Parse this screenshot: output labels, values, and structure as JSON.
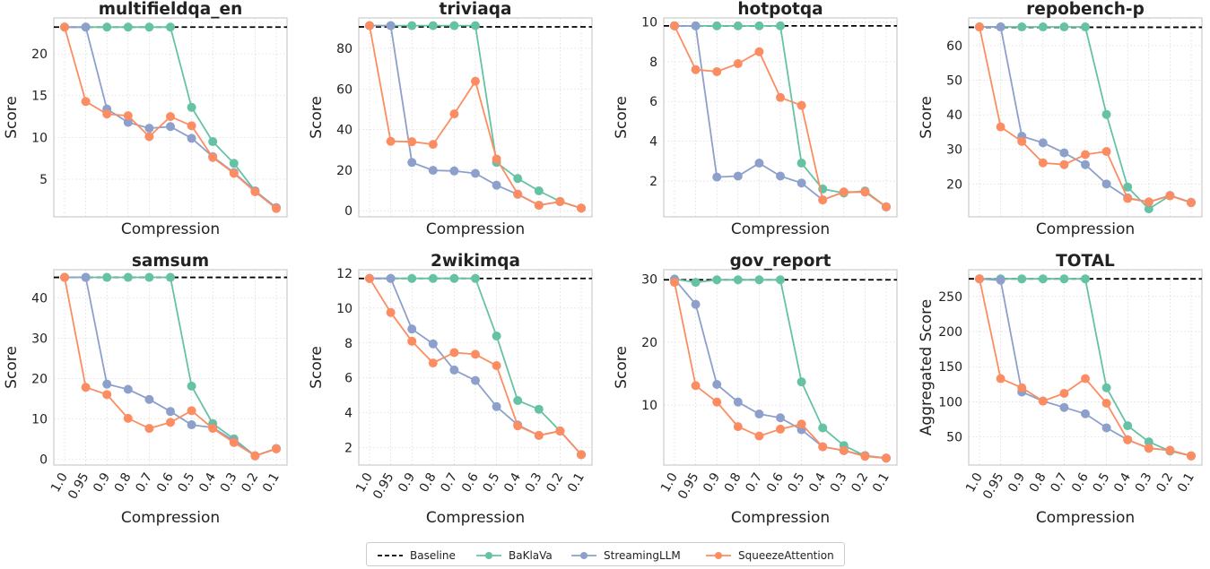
{
  "colors": {
    "baseline": "#000000",
    "baklava": "#66c2a5",
    "streamingllm": "#8da0cb",
    "squeezeattention": "#fc8d62",
    "frame": "#cccccc",
    "grid": "#e3e3e3"
  },
  "legend": {
    "baseline": "Baseline",
    "baklava": "BaKlaVa",
    "streamingllm": "StreamingLLM",
    "squeezeattention": "SqueezeAttention"
  },
  "chart_data": [
    {
      "type": "line",
      "title": "multifieldqa_en",
      "xlabel": "Compression",
      "ylabel": "Score",
      "categories": [
        "1.0",
        "0.95",
        "0.9",
        "0.8",
        "0.7",
        "0.6",
        "0.5",
        "0.4",
        "0.3",
        "0.2",
        "0.1"
      ],
      "ylim": [
        0.5,
        24.3
      ],
      "yticks": [
        5,
        10,
        15,
        20
      ],
      "baseline": 23.2,
      "grid": true,
      "series": [
        {
          "name": "BaKlaVa",
          "values": [
            23.2,
            23.2,
            23.2,
            23.2,
            23.2,
            23.2,
            13.6,
            9.5,
            6.9,
            3.6,
            1.6
          ]
        },
        {
          "name": "StreamingLLM",
          "values": [
            23.2,
            23.2,
            13.4,
            11.8,
            11.1,
            11.3,
            9.9,
            7.7,
            5.8,
            3.6,
            1.6
          ]
        },
        {
          "name": "SqueezeAttention",
          "values": [
            23.2,
            14.3,
            12.8,
            12.6,
            10.1,
            12.5,
            11.4,
            7.6,
            5.7,
            3.5,
            1.5
          ]
        }
      ]
    },
    {
      "type": "line",
      "title": "triviaqa",
      "xlabel": "Compression",
      "ylabel": "Score",
      "categories": [
        "1.0",
        "0.95",
        "0.9",
        "0.8",
        "0.7",
        "0.6",
        "0.5",
        "0.4",
        "0.3",
        "0.2",
        "0.1"
      ],
      "ylim": [
        -3,
        95
      ],
      "yticks": [
        0,
        20,
        40,
        60,
        80
      ],
      "baseline": 90.6,
      "grid": true,
      "series": [
        {
          "name": "BaKlaVa",
          "values": [
            91.2,
            91.2,
            91.2,
            91.2,
            91.2,
            91.2,
            23.8,
            15.9,
            9.8,
            4.6,
            1.3
          ]
        },
        {
          "name": "StreamingLLM",
          "values": [
            91.2,
            91.2,
            23.8,
            19.9,
            19.6,
            18.4,
            12.6,
            8.1,
            2.7,
            4.5,
            1.3
          ]
        },
        {
          "name": "SqueezeAttention",
          "values": [
            91.2,
            34.2,
            34.0,
            32.7,
            47.7,
            63.8,
            25.5,
            8.2,
            2.7,
            4.5,
            1.3
          ]
        }
      ]
    },
    {
      "type": "line",
      "title": "hotpotqa",
      "xlabel": "Compression",
      "ylabel": "Score",
      "categories": [
        "1.0",
        "0.95",
        "0.9",
        "0.8",
        "0.7",
        "0.6",
        "0.5",
        "0.4",
        "0.3",
        "0.2",
        "0.1"
      ],
      "ylim": [
        0.2,
        10.2
      ],
      "yticks": [
        2,
        4,
        6,
        8,
        10
      ],
      "baseline": 9.8,
      "grid": true,
      "series": [
        {
          "name": "BaKlaVa",
          "values": [
            9.8,
            9.8,
            9.8,
            9.8,
            9.8,
            9.8,
            2.9,
            1.6,
            1.4,
            1.5,
            0.7
          ]
        },
        {
          "name": "StreamingLLM",
          "values": [
            9.8,
            9.8,
            2.2,
            2.25,
            2.9,
            2.25,
            1.9,
            1.05,
            1.45,
            1.45,
            0.7
          ]
        },
        {
          "name": "SqueezeAttention",
          "values": [
            9.8,
            7.6,
            7.5,
            7.9,
            8.5,
            6.2,
            5.8,
            1.05,
            1.45,
            1.45,
            0.7
          ]
        }
      ]
    },
    {
      "type": "line",
      "title": "repobench-p",
      "xlabel": "Compression",
      "ylabel": "Score",
      "categories": [
        "1.0",
        "0.95",
        "0.9",
        "0.8",
        "0.7",
        "0.6",
        "0.5",
        "0.4",
        "0.3",
        "0.2",
        "0.1"
      ],
      "ylim": [
        10.5,
        68
      ],
      "yticks": [
        20,
        30,
        40,
        50,
        60
      ],
      "baseline": 65.3,
      "grid": true,
      "series": [
        {
          "name": "BaKlaVa",
          "values": [
            65.4,
            65.4,
            65.4,
            65.4,
            65.4,
            65.4,
            40.1,
            19.1,
            12.8,
            16.6,
            14.6
          ]
        },
        {
          "name": "StreamingLLM",
          "values": [
            65.4,
            65.4,
            33.8,
            31.9,
            29.0,
            25.6,
            20.0,
            16.0,
            14.8,
            16.7,
            14.7
          ]
        },
        {
          "name": "SqueezeAttention",
          "values": [
            65.4,
            36.5,
            32.3,
            26.1,
            25.6,
            28.5,
            29.4,
            15.8,
            14.8,
            16.6,
            14.6
          ]
        }
      ]
    },
    {
      "type": "line",
      "title": "samsum",
      "xlabel": "Compression",
      "ylabel": "Score",
      "categories": [
        "1.0",
        "0.95",
        "0.9",
        "0.8",
        "0.7",
        "0.6",
        "0.5",
        "0.4",
        "0.3",
        "0.2",
        "0.1"
      ],
      "ylim": [
        -1.5,
        47
      ],
      "yticks": [
        0,
        10,
        20,
        30,
        40
      ],
      "baseline": 45.1,
      "grid": true,
      "series": [
        {
          "name": "BaKlaVa",
          "values": [
            45.1,
            45.1,
            45.1,
            45.1,
            45.1,
            45.1,
            18.1,
            8.8,
            5.0,
            0.8,
            2.6
          ]
        },
        {
          "name": "StreamingLLM",
          "values": [
            45.1,
            45.1,
            18.6,
            17.3,
            14.8,
            11.8,
            8.5,
            7.8,
            4.5,
            0.8,
            2.6
          ]
        },
        {
          "name": "SqueezeAttention",
          "values": [
            45.1,
            17.8,
            16.0,
            10.1,
            7.6,
            9.1,
            12.0,
            7.6,
            4.1,
            0.8,
            2.5
          ]
        }
      ]
    },
    {
      "type": "line",
      "title": "2wikimqa",
      "xlabel": "Compression",
      "ylabel": "Score",
      "categories": [
        "1.0",
        "0.95",
        "0.9",
        "0.8",
        "0.7",
        "0.6",
        "0.5",
        "0.4",
        "0.3",
        "0.2",
        "0.1"
      ],
      "ylim": [
        1.0,
        12.2
      ],
      "yticks": [
        2,
        4,
        6,
        8,
        10,
        12
      ],
      "baseline": 11.7,
      "grid": true,
      "series": [
        {
          "name": "BaKlaVa",
          "values": [
            11.7,
            11.7,
            11.7,
            11.7,
            11.7,
            11.7,
            8.4,
            4.7,
            4.2,
            2.95,
            1.6
          ]
        },
        {
          "name": "StreamingLLM",
          "values": [
            11.7,
            11.7,
            8.8,
            7.95,
            6.45,
            5.85,
            4.35,
            3.3,
            2.7,
            2.95,
            1.6
          ]
        },
        {
          "name": "SqueezeAttention",
          "values": [
            11.7,
            9.75,
            8.1,
            6.85,
            7.45,
            7.35,
            6.7,
            3.25,
            2.7,
            2.95,
            1.6
          ]
        }
      ]
    },
    {
      "type": "line",
      "title": "gov_report",
      "xlabel": "Compression",
      "ylabel": "Score",
      "categories": [
        "1.0",
        "0.95",
        "0.9",
        "0.8",
        "0.7",
        "0.6",
        "0.5",
        "0.4",
        "0.3",
        "0.2",
        "0.1"
      ],
      "ylim": [
        0.5,
        31.5
      ],
      "yticks": [
        10,
        20,
        30
      ],
      "baseline": 29.9,
      "grid": true,
      "series": [
        {
          "name": "BaKlaVa",
          "values": [
            30.0,
            29.5,
            29.9,
            29.9,
            29.9,
            29.9,
            13.7,
            6.4,
            3.6,
            2.0,
            1.6
          ]
        },
        {
          "name": "StreamingLLM",
          "values": [
            30.0,
            26.0,
            13.3,
            10.5,
            8.6,
            8.0,
            6.1,
            3.4,
            2.8,
            2.0,
            1.6
          ]
        },
        {
          "name": "SqueezeAttention",
          "values": [
            29.5,
            13.1,
            10.5,
            6.6,
            5.1,
            6.2,
            7.0,
            3.4,
            2.8,
            1.9,
            1.6
          ]
        }
      ]
    },
    {
      "type": "line",
      "title": "TOTAL",
      "xlabel": "Compression",
      "ylabel": "Aggregated Score",
      "categories": [
        "1.0",
        "0.95",
        "0.9",
        "0.8",
        "0.7",
        "0.6",
        "0.5",
        "0.4",
        "0.3",
        "0.2",
        "0.1"
      ],
      "ylim": [
        10,
        288
      ],
      "yticks": [
        50,
        100,
        150,
        200,
        250
      ],
      "baseline": 275,
      "grid": true,
      "series": [
        {
          "name": "BaKlaVa",
          "values": [
            275,
            275,
            275,
            275,
            275,
            275,
            120,
            66,
            43,
            30,
            23
          ]
        },
        {
          "name": "StreamingLLM",
          "values": [
            275,
            273,
            114,
            101,
            92,
            83,
            63,
            46,
            34,
            31,
            23
          ]
        },
        {
          "name": "SqueezeAttention",
          "values": [
            275,
            133,
            120,
            101,
            112,
            133,
            98,
            46,
            34,
            31,
            23
          ]
        }
      ]
    }
  ]
}
